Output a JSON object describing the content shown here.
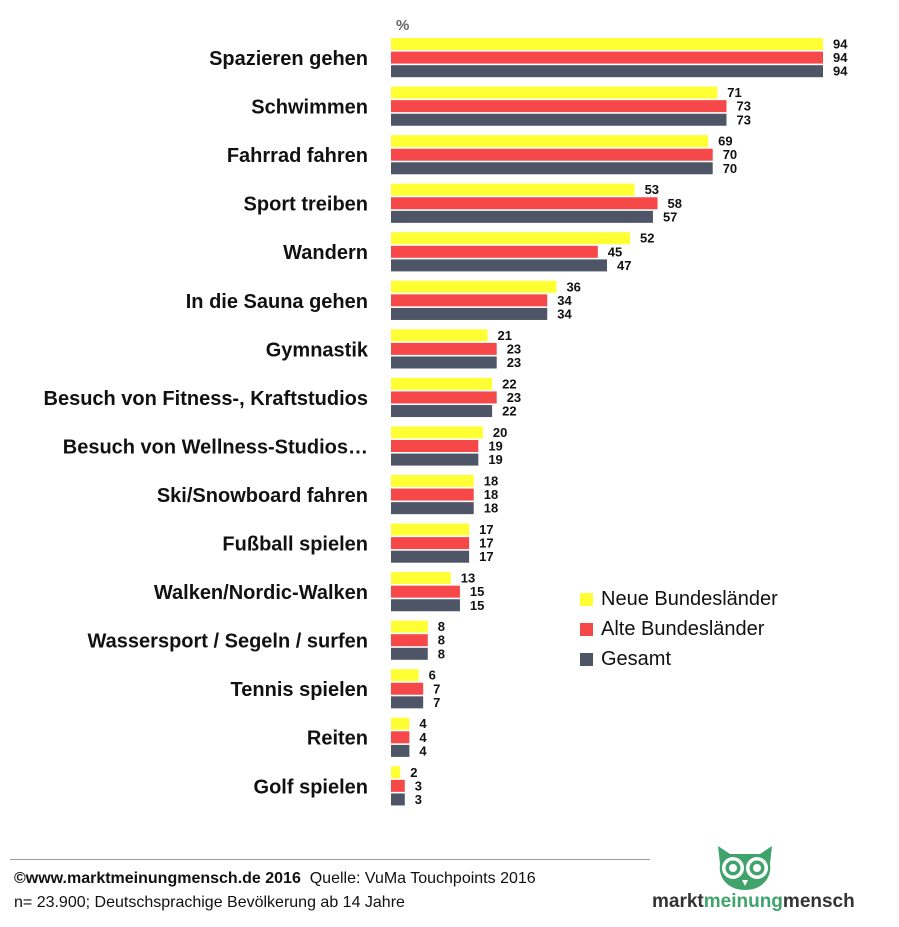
{
  "chart_data": {
    "type": "bar",
    "orientation": "horizontal",
    "unit": "%",
    "categories": [
      "Spazieren gehen",
      "Schwimmen",
      "Fahrrad fahren",
      "Sport treiben",
      "Wandern",
      "In die Sauna gehen",
      "Gymnastik",
      "Besuch von Fitness-, Kraftstudios",
      "Besuch von Wellness-Studios…",
      "Ski/Snowboard fahren",
      "Fußball spielen",
      "Walken/Nordic-Walken",
      "Wassersport / Segeln / surfen",
      "Tennis spielen",
      "Reiten",
      "Golf spielen"
    ],
    "series": [
      {
        "name": "Neue Bundesländer",
        "color": "#ffff33",
        "values": [
          94,
          71,
          69,
          53,
          52,
          36,
          21,
          22,
          20,
          18,
          17,
          13,
          8,
          6,
          4,
          2
        ]
      },
      {
        "name": "Alte Bundesländer",
        "color": "#f64848",
        "values": [
          94,
          73,
          70,
          58,
          45,
          34,
          23,
          23,
          19,
          18,
          17,
          15,
          8,
          7,
          4,
          3
        ]
      },
      {
        "name": "Gesamt",
        "color": "#4d5566",
        "values": [
          94,
          73,
          70,
          57,
          47,
          34,
          23,
          22,
          19,
          18,
          17,
          15,
          8,
          7,
          4,
          3
        ]
      }
    ],
    "xlim": [
      0,
      100
    ],
    "grid": false,
    "legend_position": "right"
  },
  "footer": {
    "copyright": "©www.marktmeinungmensch.de 2016",
    "source": "Quelle: VuMa Touchpoints 2016",
    "sample": "n= 23.900; Deutschsprachige Bevölkerung ab 14 Jahre"
  },
  "logo": {
    "part1": "markt",
    "part2": "meinung",
    "part3": "mensch",
    "dark_color": "#333333",
    "green_color": "#3fa36b"
  }
}
